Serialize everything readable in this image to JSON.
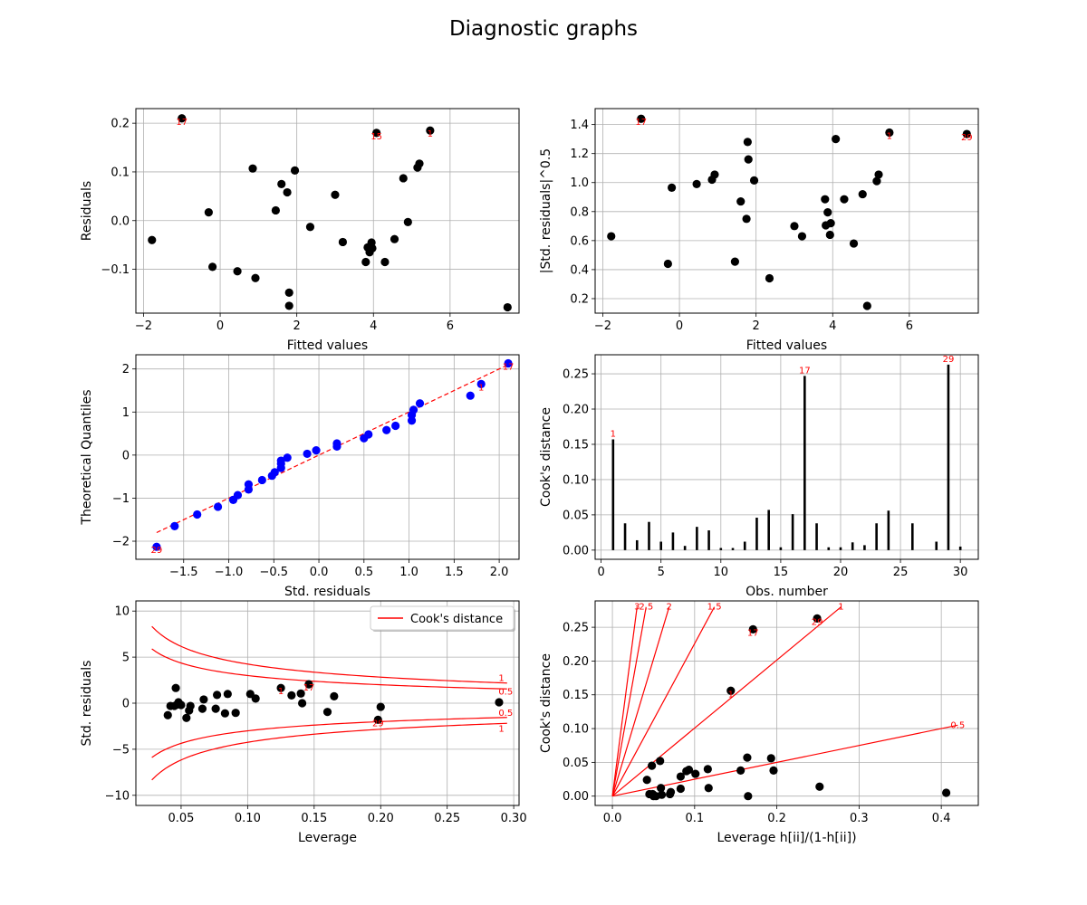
{
  "title": "Diagnostic graphs",
  "chart_data": [
    {
      "type": "scatter",
      "xlabel": "Fitted values",
      "ylabel": "Residuals",
      "xlim": [
        -2.2,
        7.8
      ],
      "ylim": [
        -0.19,
        0.23
      ],
      "xticks": [
        -2,
        0,
        2,
        4,
        6
      ],
      "yticks": [
        -0.1,
        0.0,
        0.1,
        0.2
      ],
      "ytick_labels": [
        "−0.1",
        "0.0",
        "0.1",
        "0.2"
      ],
      "xtick_labels": [
        "−2",
        "0",
        "2",
        "4",
        "6"
      ],
      "grid": true,
      "marker_color": "#000000",
      "points": [
        [
          -1.78,
          -0.04
        ],
        [
          -1.0,
          0.21
        ],
        [
          -0.3,
          0.017
        ],
        [
          -0.2,
          -0.095
        ],
        [
          0.45,
          -0.104
        ],
        [
          0.85,
          0.107
        ],
        [
          0.92,
          -0.118
        ],
        [
          1.45,
          0.021
        ],
        [
          1.6,
          0.075
        ],
        [
          1.75,
          0.058
        ],
        [
          1.8,
          -0.148
        ],
        [
          1.8,
          -0.175
        ],
        [
          1.95,
          0.103
        ],
        [
          2.35,
          -0.013
        ],
        [
          3.0,
          0.053
        ],
        [
          3.2,
          -0.044
        ],
        [
          3.8,
          -0.085
        ],
        [
          3.85,
          -0.055
        ],
        [
          3.9,
          -0.065
        ],
        [
          3.95,
          -0.045
        ],
        [
          3.97,
          -0.057
        ],
        [
          4.08,
          0.18
        ],
        [
          4.3,
          -0.085
        ],
        [
          4.55,
          -0.038
        ],
        [
          4.78,
          0.087
        ],
        [
          4.9,
          -0.003
        ],
        [
          5.15,
          0.109
        ],
        [
          5.2,
          0.117
        ],
        [
          5.48,
          0.185
        ],
        [
          7.5,
          -0.178
        ]
      ],
      "annotations": [
        {
          "label": "17",
          "x": -1.0,
          "y": 0.21
        },
        {
          "label": "15",
          "x": 4.08,
          "y": 0.18
        },
        {
          "label": "1",
          "x": 5.48,
          "y": 0.185
        }
      ]
    },
    {
      "type": "scatter",
      "xlabel": "Fitted values",
      "ylabel": "|Std. residuals|^0.5",
      "xlim": [
        -2.2,
        7.8
      ],
      "ylim": [
        0.1,
        1.51
      ],
      "xticks": [
        -2,
        0,
        2,
        4,
        6
      ],
      "xtick_labels": [
        "−2",
        "0",
        "2",
        "4",
        "6"
      ],
      "yticks": [
        0.2,
        0.4,
        0.6,
        0.8,
        1.0,
        1.2,
        1.4
      ],
      "ytick_labels": [
        "0.2",
        "0.4",
        "0.6",
        "0.8",
        "1.0",
        "1.2",
        "1.4"
      ],
      "grid": true,
      "marker_color": "#000000",
      "points": [
        [
          -1.78,
          0.63
        ],
        [
          -1.0,
          1.44
        ],
        [
          -0.3,
          0.44
        ],
        [
          -0.2,
          0.965
        ],
        [
          0.45,
          0.99
        ],
        [
          0.85,
          1.02
        ],
        [
          0.92,
          1.055
        ],
        [
          1.45,
          0.455
        ],
        [
          1.6,
          0.87
        ],
        [
          1.75,
          0.75
        ],
        [
          1.78,
          1.28
        ],
        [
          1.8,
          1.16
        ],
        [
          1.95,
          1.015
        ],
        [
          2.35,
          0.34
        ],
        [
          3.0,
          0.7
        ],
        [
          3.2,
          0.63
        ],
        [
          3.8,
          0.885
        ],
        [
          3.82,
          0.705
        ],
        [
          3.87,
          0.795
        ],
        [
          3.93,
          0.64
        ],
        [
          3.95,
          0.72
        ],
        [
          4.08,
          1.3
        ],
        [
          4.3,
          0.885
        ],
        [
          4.55,
          0.58
        ],
        [
          4.78,
          0.92
        ],
        [
          4.9,
          0.15
        ],
        [
          5.15,
          1.01
        ],
        [
          5.2,
          1.055
        ],
        [
          5.48,
          1.345
        ],
        [
          7.5,
          1.335
        ]
      ],
      "annotations": [
        {
          "label": "17",
          "x": -1.0,
          "y": 1.44
        },
        {
          "label": "1",
          "x": 5.48,
          "y": 1.345
        },
        {
          "label": "29",
          "x": 7.5,
          "y": 1.335
        }
      ]
    },
    {
      "type": "scatter",
      "xlabel": "Std. residuals",
      "ylabel": "Theoretical Quantiles",
      "xlim": [
        -2.03,
        2.22
      ],
      "ylim": [
        -2.42,
        2.33
      ],
      "xticks": [
        -1.5,
        -1.0,
        -0.5,
        0.0,
        0.5,
        1.0,
        1.5,
        2.0
      ],
      "xtick_labels": [
        "−1.5",
        "−1.0",
        "−0.5",
        "0.0",
        "0.5",
        "1.0",
        "1.5",
        "2.0"
      ],
      "yticks": [
        -2,
        -1,
        0,
        1,
        2
      ],
      "ytick_labels": [
        "−2",
        "−1",
        "0",
        "1",
        "2"
      ],
      "grid": true,
      "marker_color": "#0000ff",
      "line_color": "#ff0000",
      "reference_line": [
        [
          -1.8,
          -1.8
        ],
        [
          2.1,
          2.1
        ]
      ],
      "points": [
        [
          -1.8,
          -2.13
        ],
        [
          -1.6,
          -1.65
        ],
        [
          -1.35,
          -1.38
        ],
        [
          -1.12,
          -1.2
        ],
        [
          -0.95,
          -1.04
        ],
        [
          -0.9,
          -0.93
        ],
        [
          -0.78,
          -0.8
        ],
        [
          -0.78,
          -0.68
        ],
        [
          -0.63,
          -0.58
        ],
        [
          -0.52,
          -0.48
        ],
        [
          -0.49,
          -0.4
        ],
        [
          -0.42,
          -0.3
        ],
        [
          -0.42,
          -0.2
        ],
        [
          -0.42,
          -0.13
        ],
        [
          -0.35,
          -0.06
        ],
        [
          -0.13,
          0.03
        ],
        [
          -0.03,
          0.11
        ],
        [
          0.2,
          0.2
        ],
        [
          0.2,
          0.27
        ],
        [
          0.5,
          0.39
        ],
        [
          0.55,
          0.48
        ],
        [
          0.75,
          0.58
        ],
        [
          0.85,
          0.68
        ],
        [
          1.03,
          0.8
        ],
        [
          1.03,
          0.93
        ],
        [
          1.05,
          1.05
        ],
        [
          1.12,
          1.2
        ],
        [
          1.68,
          1.38
        ],
        [
          1.8,
          1.65
        ],
        [
          2.1,
          2.13
        ]
      ],
      "annotations": [
        {
          "label": "29",
          "x": -1.8,
          "y": -2.13
        },
        {
          "label": "1",
          "x": 1.8,
          "y": 1.65
        },
        {
          "label": "17",
          "x": 2.1,
          "y": 2.13
        }
      ]
    },
    {
      "type": "bar",
      "xlabel": "Obs. number",
      "ylabel": "Cook's distance",
      "xlim": [
        -0.5,
        31.5
      ],
      "ylim": [
        -0.013,
        0.277
      ],
      "xticks": [
        0,
        5,
        10,
        15,
        20,
        25,
        30
      ],
      "xtick_labels": [
        "0",
        "5",
        "10",
        "15",
        "20",
        "25",
        "30"
      ],
      "yticks": [
        0.0,
        0.05,
        0.1,
        0.15,
        0.2,
        0.25
      ],
      "ytick_labels": [
        "0.00",
        "0.05",
        "0.10",
        "0.15",
        "0.20",
        "0.25"
      ],
      "grid": true,
      "bar_color": "#000000",
      "categories": [
        1,
        2,
        3,
        4,
        5,
        6,
        7,
        8,
        9,
        10,
        11,
        12,
        13,
        14,
        15,
        16,
        17,
        18,
        19,
        20,
        21,
        22,
        23,
        24,
        25,
        26,
        27,
        28,
        29,
        30
      ],
      "values": [
        0.157,
        0.038,
        0.014,
        0.04,
        0.012,
        0.025,
        0.006,
        0.033,
        0.028,
        0.003,
        0.003,
        0.012,
        0.046,
        0.057,
        0.004,
        0.051,
        0.247,
        0.038,
        0.004,
        0.004,
        0.011,
        0.007,
        0.038,
        0.056,
        0.0,
        0.038,
        0.0,
        0.012,
        0.263,
        0.005
      ],
      "annotations": [
        {
          "label": "1",
          "x": 1,
          "y": 0.157
        },
        {
          "label": "17",
          "x": 17,
          "y": 0.247
        },
        {
          "label": "29",
          "x": 29,
          "y": 0.263
        }
      ]
    },
    {
      "type": "scatter",
      "xlabel": "Leverage",
      "ylabel": "Std. residuals",
      "xlim": [
        0.016,
        0.304
      ],
      "ylim": [
        -11.1,
        11.1
      ],
      "xticks": [
        0.05,
        0.1,
        0.15,
        0.2,
        0.25,
        0.3
      ],
      "xtick_labels": [
        "0.05",
        "0.10",
        "0.15",
        "0.20",
        "0.25",
        "0.30"
      ],
      "yticks": [
        -10,
        -5,
        0,
        5,
        10
      ],
      "ytick_labels": [
        "−10",
        "−5",
        "0",
        "5",
        "10"
      ],
      "grid": true,
      "marker_color": "#000000",
      "line_color": "#ff0000",
      "legend": {
        "entries": [
          "Cook's distance"
        ],
        "position": "top-right"
      },
      "contour_levels": [
        0.5,
        1
      ],
      "contour_n_params": 2,
      "contour_hmin": 0.028,
      "contour_hmax": 0.295,
      "contour_labels": [
        {
          "label": "1",
          "x": 0.294,
          "y": 2.7
        },
        {
          "label": "0.5",
          "x": 0.294,
          "y": 1.25
        },
        {
          "label": "0.5",
          "x": 0.294,
          "y": -1.1
        },
        {
          "label": "1",
          "x": 0.294,
          "y": -2.8
        }
      ],
      "points": [
        [
          0.04,
          -1.3
        ],
        [
          0.042,
          -0.3
        ],
        [
          0.045,
          -0.3
        ],
        [
          0.046,
          1.65
        ],
        [
          0.047,
          -0.15
        ],
        [
          0.048,
          0.1
        ],
        [
          0.05,
          -0.2
        ],
        [
          0.054,
          -1.6
        ],
        [
          0.056,
          -0.8
        ],
        [
          0.057,
          -0.3
        ],
        [
          0.066,
          -0.6
        ],
        [
          0.067,
          0.4
        ],
        [
          0.076,
          -0.6
        ],
        [
          0.077,
          0.9
        ],
        [
          0.083,
          -1.1
        ],
        [
          0.085,
          1.0
        ],
        [
          0.091,
          -1.05
        ],
        [
          0.102,
          1.0
        ],
        [
          0.106,
          0.5
        ],
        [
          0.125,
          1.65
        ],
        [
          0.133,
          0.85
        ],
        [
          0.14,
          1.05
        ],
        [
          0.141,
          0.0
        ],
        [
          0.146,
          2.05
        ],
        [
          0.16,
          -0.95
        ],
        [
          0.165,
          0.75
        ],
        [
          0.198,
          -1.8
        ],
        [
          0.2,
          -0.4
        ],
        [
          0.289,
          0.1
        ]
      ],
      "annotations": [
        {
          "label": "1",
          "x": 0.125,
          "y": 1.65
        },
        {
          "label": "17",
          "x": 0.146,
          "y": 2.05
        },
        {
          "label": "29",
          "x": 0.198,
          "y": -1.8
        }
      ]
    },
    {
      "type": "scatter",
      "xlabel": "Leverage h[ii]/(1-h[ii])",
      "ylabel": "Cook's distance",
      "xlim": [
        -0.021,
        0.445
      ],
      "ylim": [
        -0.0138,
        0.289
      ],
      "xticks": [
        0.0,
        0.1,
        0.2,
        0.3,
        0.4
      ],
      "xtick_labels": [
        "0.0",
        "0.1",
        "0.2",
        "0.3",
        "0.4"
      ],
      "yticks": [
        0.0,
        0.05,
        0.1,
        0.15,
        0.2,
        0.25
      ],
      "ytick_labels": [
        "0.00",
        "0.05",
        "0.10",
        "0.15",
        "0.20",
        "0.25"
      ],
      "grid": true,
      "marker_color": "#000000",
      "line_color": "#ff0000",
      "reference_lines": [
        {
          "label": "3",
          "end": [
            0.03,
            0.28
          ]
        },
        {
          "label": "2.5",
          "end": [
            0.041,
            0.28
          ]
        },
        {
          "label": "2",
          "end": [
            0.069,
            0.28
          ]
        },
        {
          "label": "1.5",
          "end": [
            0.124,
            0.28
          ]
        },
        {
          "label": "1",
          "end": [
            0.278,
            0.28
          ]
        },
        {
          "label": "0.5",
          "end": [
            0.42,
            0.105
          ]
        }
      ],
      "points": [
        [
          0.042,
          0.024
        ],
        [
          0.045,
          0.003
        ],
        [
          0.048,
          0.045
        ],
        [
          0.049,
          0.003
        ],
        [
          0.05,
          0.0
        ],
        [
          0.053,
          0.0
        ],
        [
          0.058,
          0.052
        ],
        [
          0.059,
          0.012
        ],
        [
          0.06,
          0.002
        ],
        [
          0.07,
          0.003
        ],
        [
          0.071,
          0.006
        ],
        [
          0.083,
          0.029
        ],
        [
          0.083,
          0.011
        ],
        [
          0.09,
          0.037
        ],
        [
          0.093,
          0.039
        ],
        [
          0.101,
          0.033
        ],
        [
          0.116,
          0.04
        ],
        [
          0.117,
          0.012
        ],
        [
          0.144,
          0.156
        ],
        [
          0.156,
          0.038
        ],
        [
          0.164,
          0.057
        ],
        [
          0.165,
          0.0
        ],
        [
          0.171,
          0.247
        ],
        [
          0.193,
          0.056
        ],
        [
          0.196,
          0.038
        ],
        [
          0.249,
          0.263
        ],
        [
          0.252,
          0.014
        ],
        [
          0.406,
          0.005
        ]
      ],
      "annotations": [
        {
          "label": "1",
          "x": 0.144,
          "y": 0.156
        },
        {
          "label": "17",
          "x": 0.171,
          "y": 0.247
        },
        {
          "label": "29",
          "x": 0.249,
          "y": 0.263
        }
      ]
    }
  ]
}
